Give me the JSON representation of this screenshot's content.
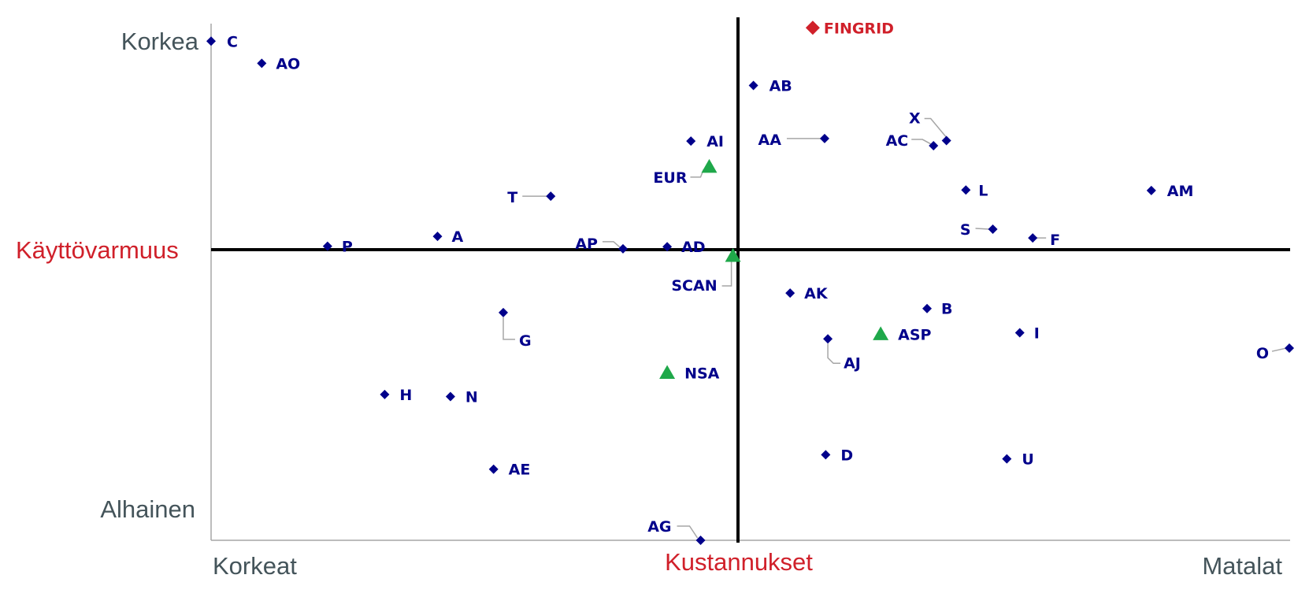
{
  "chart_data": {
    "type": "scatter",
    "title": "",
    "xlabel": "Kustannukset",
    "ylabel": "Käyttövarmuus",
    "x_min_label": "Korkeat",
    "x_max_label": "Matalat",
    "y_max_label": "Korkea",
    "y_min_label": "Alhainen",
    "xlim": [
      0,
      100
    ],
    "ylim": [
      0,
      100
    ],
    "grid": false,
    "legend": "none",
    "colors": {
      "point": "#00008b",
      "highlight": "#d0202a",
      "benchmark": "#1fa84a",
      "axis_label": "#d0202a",
      "end_label": "#44545a",
      "leader": "#a6a6a6"
    },
    "points": [
      {
        "label": "FINGRID",
        "x": 55.8,
        "y": 99.5,
        "marker": "diamond",
        "group": "highlight"
      },
      {
        "label": "C",
        "x": 0.0,
        "y": 96.9,
        "marker": "diamond",
        "group": "company"
      },
      {
        "label": "AO",
        "x": 4.7,
        "y": 92.6,
        "marker": "diamond",
        "group": "company"
      },
      {
        "label": "AB",
        "x": 50.3,
        "y": 88.3,
        "marker": "diamond",
        "group": "company"
      },
      {
        "label": "AI",
        "x": 44.5,
        "y": 77.5,
        "marker": "diamond",
        "group": "company"
      },
      {
        "label": "AA",
        "x": 56.9,
        "y": 78.0,
        "marker": "diamond",
        "group": "company"
      },
      {
        "label": "X",
        "x": 68.2,
        "y": 77.6,
        "marker": "diamond",
        "group": "company"
      },
      {
        "label": "AC",
        "x": 67.0,
        "y": 76.6,
        "marker": "diamond",
        "group": "company"
      },
      {
        "label": "EUR",
        "x": 46.2,
        "y": 72.5,
        "marker": "triangle",
        "group": "benchmark"
      },
      {
        "label": "T",
        "x": 31.5,
        "y": 66.8,
        "marker": "diamond",
        "group": "company"
      },
      {
        "label": "L",
        "x": 70.0,
        "y": 68.0,
        "marker": "diamond",
        "group": "company"
      },
      {
        "label": "AM",
        "x": 87.2,
        "y": 67.9,
        "marker": "diamond",
        "group": "company"
      },
      {
        "label": "S",
        "x": 72.5,
        "y": 60.4,
        "marker": "diamond",
        "group": "company"
      },
      {
        "label": "F",
        "x": 76.2,
        "y": 58.7,
        "marker": "diamond",
        "group": "company"
      },
      {
        "label": "A",
        "x": 21.0,
        "y": 59.0,
        "marker": "diamond",
        "group": "company"
      },
      {
        "label": "P",
        "x": 10.8,
        "y": 57.1,
        "marker": "diamond",
        "group": "company"
      },
      {
        "label": "AP",
        "x": 38.2,
        "y": 56.6,
        "marker": "diamond",
        "group": "company"
      },
      {
        "label": "AD",
        "x": 42.3,
        "y": 57.0,
        "marker": "diamond",
        "group": "company"
      },
      {
        "label": "SCAN",
        "x": 48.4,
        "y": 55.2,
        "marker": "triangle",
        "group": "benchmark"
      },
      {
        "label": "AK",
        "x": 53.7,
        "y": 48.0,
        "marker": "diamond",
        "group": "company"
      },
      {
        "label": "B",
        "x": 66.4,
        "y": 45.0,
        "marker": "diamond",
        "group": "company"
      },
      {
        "label": "G",
        "x": 27.1,
        "y": 44.2,
        "marker": "diamond",
        "group": "company"
      },
      {
        "label": "I",
        "x": 75.0,
        "y": 40.3,
        "marker": "diamond",
        "group": "company"
      },
      {
        "label": "ASP",
        "x": 62.1,
        "y": 40.0,
        "marker": "triangle",
        "group": "benchmark"
      },
      {
        "label": "AJ",
        "x": 57.2,
        "y": 39.1,
        "marker": "diamond",
        "group": "company"
      },
      {
        "label": "O",
        "x": 100.0,
        "y": 37.3,
        "marker": "diamond",
        "group": "company"
      },
      {
        "label": "NSA",
        "x": 42.3,
        "y": 32.5,
        "marker": "triangle",
        "group": "benchmark"
      },
      {
        "label": "H",
        "x": 16.1,
        "y": 28.3,
        "marker": "diamond",
        "group": "company"
      },
      {
        "label": "N",
        "x": 22.2,
        "y": 27.9,
        "marker": "diamond",
        "group": "company"
      },
      {
        "label": "D",
        "x": 57.0,
        "y": 16.6,
        "marker": "diamond",
        "group": "company"
      },
      {
        "label": "U",
        "x": 73.8,
        "y": 15.8,
        "marker": "diamond",
        "group": "company"
      },
      {
        "label": "AE",
        "x": 26.2,
        "y": 13.8,
        "marker": "diamond",
        "group": "company"
      },
      {
        "label": "AG",
        "x": 45.4,
        "y": 0.0,
        "marker": "diamond",
        "group": "company"
      }
    ]
  }
}
